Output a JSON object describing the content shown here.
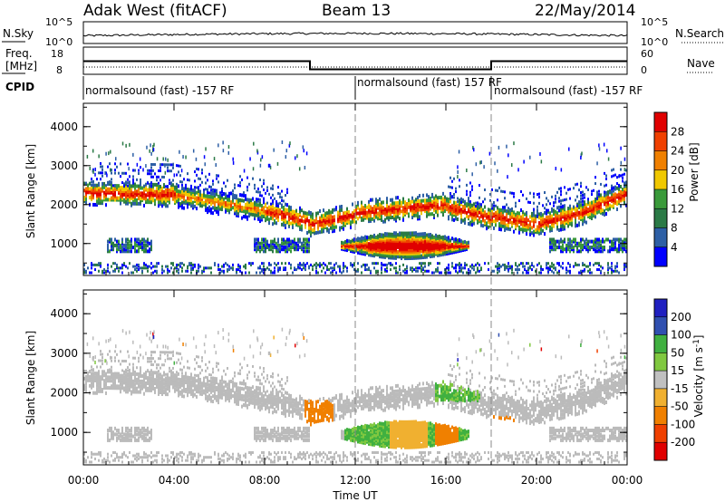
{
  "header": {
    "station": "Adak West (fitACF)",
    "beam": "Beam 13",
    "date": "22/May/2014"
  },
  "colors": {
    "power": [
      "#0000ff",
      "#2d5fa5",
      "#2b7a46",
      "#3a9a3a",
      "#f0c800",
      "#f08000",
      "#f04000",
      "#e00000"
    ],
    "velocity": [
      "#e00000",
      "#f04000",
      "#f08000",
      "#f0b030",
      "#c0c0c0",
      "#80c840",
      "#40b040",
      "#3050b0",
      "#2020c0"
    ],
    "ground": "#bbbbbb"
  },
  "chart_data": [
    {
      "type": "line",
      "name": "N.Sky",
      "left_label": "N.Sky",
      "left_ticks": [
        "10^5",
        "10^0"
      ],
      "right_label": "N.Search",
      "right_ticks": [
        "10^5",
        "10^0"
      ],
      "xlim": [
        0,
        24
      ],
      "x_label": "",
      "note": "noise sky"
    },
    {
      "type": "line",
      "left_label_top": "Freq.",
      "left_label_bottom": "[MHz]",
      "left_ticks": [
        18,
        8
      ],
      "right_label": "Nave",
      "right_ticks": [
        60,
        0
      ],
      "xlim": [
        0,
        24
      ],
      "freq_segments": [
        {
          "x0": 0,
          "x1": 10,
          "value": 13.5
        },
        {
          "x0": 10,
          "x1": 18,
          "value": 10.5
        },
        {
          "x0": 18,
          "x1": 24,
          "value": 13.5
        }
      ]
    },
    {
      "type": "table",
      "label": "CPID",
      "segments": [
        {
          "x0": 0,
          "x1": 12,
          "text": "normalsound (fast) -157 RF"
        },
        {
          "x0": 12,
          "x1": 18,
          "text": "normalsound (fast) 157 RF"
        },
        {
          "x0": 18,
          "x1": 24,
          "text": "normalsound (fast) -157 RF"
        }
      ]
    },
    {
      "type": "heatmap",
      "ylabel": "Slant Range [km]",
      "ylim": [
        180,
        4600
      ],
      "yticks": [
        1000,
        2000,
        3000,
        4000
      ],
      "xlim": [
        0,
        24
      ],
      "colorbar_label": "Power [dB]",
      "colorbar_ticks": [
        4,
        8,
        12,
        16,
        20,
        24,
        28
      ],
      "colorbar_range": [
        0,
        32
      ]
    },
    {
      "type": "heatmap",
      "ylabel": "Slant Range [km]",
      "ylim": [
        180,
        4600
      ],
      "yticks": [
        1000,
        2000,
        3000,
        4000
      ],
      "xlim": [
        0,
        24
      ],
      "xlabel": "Time UT",
      "xticks": [
        "00:00",
        "04:00",
        "08:00",
        "12:00",
        "16:00",
        "20:00",
        "00:00"
      ],
      "colorbar_label": "Velocity [m s^-1]",
      "colorbar_ticks": [
        "200",
        "100",
        "50",
        "15",
        "-15",
        "-50",
        "-100",
        "-200"
      ]
    }
  ]
}
